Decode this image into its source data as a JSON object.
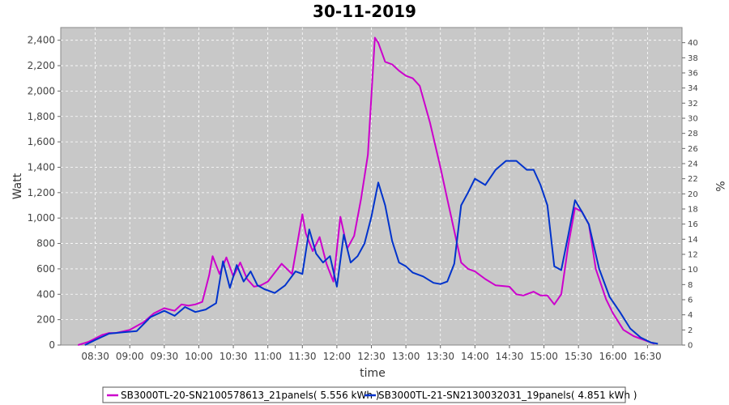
{
  "chart_data": {
    "type": "line",
    "title": "30-11-2019",
    "xlabel": "time",
    "ylabel": "Watt",
    "y2label": "%",
    "ylim": [
      0,
      2500
    ],
    "y2lim": [
      0,
      42
    ],
    "yticks": [
      0,
      200,
      400,
      600,
      800,
      1000,
      1200,
      1400,
      1600,
      1800,
      2000,
      2200,
      2400
    ],
    "ytick_labels": [
      "0",
      "200",
      "400",
      "600",
      "800",
      "1,000",
      "1,200",
      "1,400",
      "1,600",
      "1,800",
      "2,000",
      "2,200",
      "2,400"
    ],
    "y2ticks": [
      0,
      2,
      4,
      6,
      8,
      10,
      12,
      14,
      16,
      18,
      20,
      22,
      24,
      26,
      28,
      30,
      32,
      34,
      36,
      38,
      40
    ],
    "xlim": [
      8.0,
      17.0
    ],
    "xticks": [
      8.5,
      9.0,
      9.5,
      10.0,
      10.5,
      11.0,
      11.5,
      12.0,
      12.5,
      13.0,
      13.5,
      14.0,
      14.5,
      15.0,
      15.5,
      16.0,
      16.5
    ],
    "xtick_labels": [
      "08:30",
      "09:00",
      "09:30",
      "10:00",
      "10:30",
      "11:00",
      "11:30",
      "12:00",
      "12:30",
      "13:00",
      "13:30",
      "14:00",
      "14:30",
      "15:00",
      "15:30",
      "16:00",
      "16:30"
    ],
    "grid": true,
    "legend_position": "bottom",
    "series": [
      {
        "name": "SB3000TL-20-SN2100578613_21panels( 5.556 kWh )",
        "color": "#cc00cc",
        "x": [
          8.25,
          8.4,
          8.6,
          8.7,
          8.8,
          9.0,
          9.2,
          9.35,
          9.5,
          9.65,
          9.75,
          9.85,
          9.95,
          10.05,
          10.15,
          10.2,
          10.3,
          10.4,
          10.5,
          10.6,
          10.7,
          10.8,
          10.9,
          11.0,
          11.2,
          11.35,
          11.5,
          11.55,
          11.65,
          11.75,
          11.85,
          11.95,
          12.05,
          12.15,
          12.25,
          12.35,
          12.45,
          12.55,
          12.6,
          12.7,
          12.8,
          12.9,
          13.0,
          13.1,
          13.2,
          13.35,
          13.5,
          13.6,
          13.7,
          13.8,
          13.9,
          14.0,
          14.15,
          14.3,
          14.5,
          14.6,
          14.7,
          14.85,
          14.95,
          15.05,
          15.15,
          15.25,
          15.35,
          15.45,
          15.55,
          15.65,
          15.75,
          15.9,
          16.0,
          16.15,
          16.3,
          16.5,
          16.6
        ],
        "y": [
          0,
          25,
          80,
          95,
          95,
          120,
          180,
          250,
          290,
          270,
          320,
          310,
          320,
          340,
          550,
          700,
          560,
          690,
          540,
          650,
          520,
          460,
          470,
          500,
          640,
          560,
          1030,
          880,
          740,
          850,
          640,
          500,
          1010,
          760,
          860,
          1150,
          1500,
          2420,
          2380,
          2230,
          2210,
          2160,
          2120,
          2100,
          2040,
          1750,
          1400,
          1150,
          900,
          650,
          600,
          580,
          520,
          470,
          460,
          400,
          390,
          420,
          390,
          390,
          320,
          400,
          780,
          1080,
          1050,
          950,
          600,
          360,
          250,
          120,
          70,
          30,
          10
        ]
      },
      {
        "name": "SB3000TL-21-SN2130032031_19panels( 4.851 kWh )",
        "color": "#0033cc",
        "x": [
          8.35,
          8.5,
          8.7,
          8.9,
          9.1,
          9.3,
          9.5,
          9.65,
          9.8,
          9.95,
          10.1,
          10.25,
          10.35,
          10.45,
          10.55,
          10.65,
          10.75,
          10.85,
          10.95,
          11.1,
          11.25,
          11.4,
          11.5,
          11.6,
          11.7,
          11.8,
          11.9,
          12.0,
          12.1,
          12.2,
          12.3,
          12.4,
          12.5,
          12.6,
          12.7,
          12.8,
          12.9,
          13.0,
          13.1,
          13.25,
          13.4,
          13.5,
          13.6,
          13.7,
          13.8,
          13.9,
          14.0,
          14.15,
          14.3,
          14.45,
          14.6,
          14.75,
          14.85,
          14.95,
          15.05,
          15.15,
          15.25,
          15.35,
          15.45,
          15.55,
          15.65,
          15.8,
          15.95,
          16.1,
          16.25,
          16.4,
          16.55,
          16.65
        ],
        "y": [
          0,
          40,
          90,
          100,
          110,
          220,
          270,
          230,
          300,
          260,
          280,
          330,
          660,
          450,
          630,
          500,
          580,
          470,
          440,
          410,
          470,
          580,
          560,
          910,
          720,
          650,
          700,
          460,
          870,
          650,
          700,
          800,
          1010,
          1280,
          1100,
          820,
          650,
          620,
          570,
          540,
          490,
          480,
          500,
          640,
          1100,
          1200,
          1310,
          1260,
          1380,
          1450,
          1450,
          1380,
          1380,
          1260,
          1100,
          620,
          590,
          860,
          1140,
          1050,
          950,
          600,
          380,
          260,
          130,
          60,
          20,
          10
        ]
      }
    ]
  }
}
